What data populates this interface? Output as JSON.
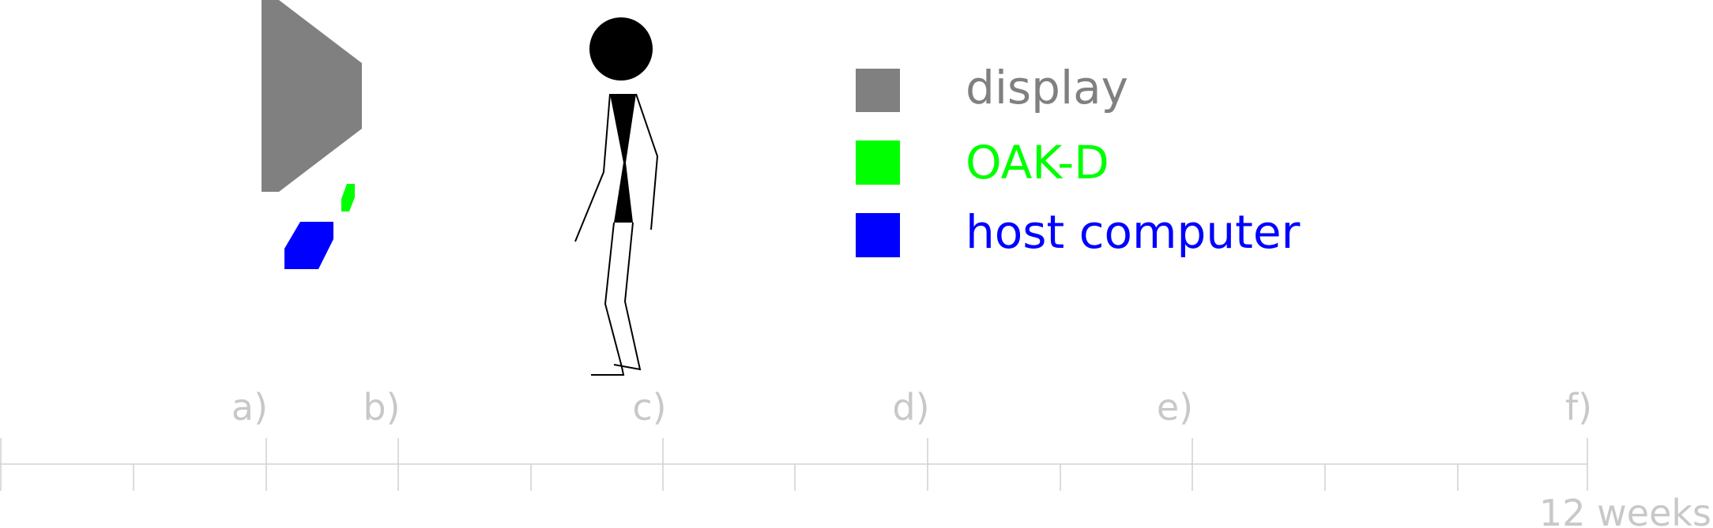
{
  "legend": {
    "items": [
      {
        "key": "display",
        "label": "display",
        "color": "#808080"
      },
      {
        "key": "oakd",
        "label": "OAK-D",
        "color": "#00ff00"
      },
      {
        "key": "host",
        "label": "host computer",
        "color": "#0000ff"
      }
    ]
  },
  "figure": {
    "body_color": "#000000"
  },
  "timeline": {
    "labels": [
      "a)",
      "b)",
      "c)",
      "d)",
      "e)",
      "f)"
    ],
    "duration_label": "12 weeks",
    "axis_color": "#d3d3d3",
    "label_color": "#c8c8c8"
  }
}
